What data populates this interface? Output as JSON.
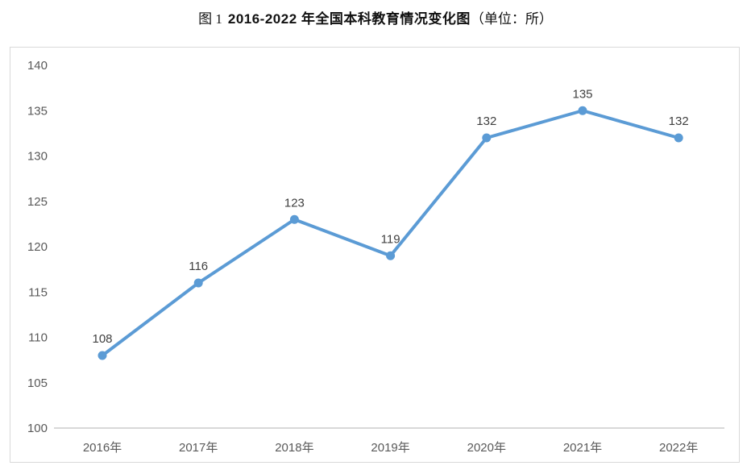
{
  "title": {
    "prefix": "图 1",
    "main": "2016-2022 年全国本科教育情况变化图",
    "suffix": "（单位：所）"
  },
  "chart_data": {
    "type": "line",
    "title": "图 1 2016-2022 年全国本科教育情况变化图（单位：所）",
    "unit_label": "所",
    "categories": [
      "2016年",
      "2017年",
      "2018年",
      "2019年",
      "2020年",
      "2021年",
      "2022年"
    ],
    "values": [
      108,
      116,
      123,
      119,
      132,
      135,
      132
    ],
    "xlabel": "",
    "ylabel": "",
    "ylim": [
      100,
      140
    ],
    "yticks": [
      100,
      105,
      110,
      115,
      120,
      125,
      130,
      135,
      140
    ],
    "grid": false,
    "legend_position": "none",
    "show_data_labels": true,
    "marker": "circle",
    "line_color": "#5B9BD5"
  },
  "colors": {
    "line": "#5B9BD5",
    "marker": "#5B9BD5",
    "axis_text": "#595959",
    "data_label_text": "#3f3f3f",
    "axis_line": "#c0c0c0",
    "chart_border": "#d9d9d9",
    "title_text": "#111111"
  }
}
